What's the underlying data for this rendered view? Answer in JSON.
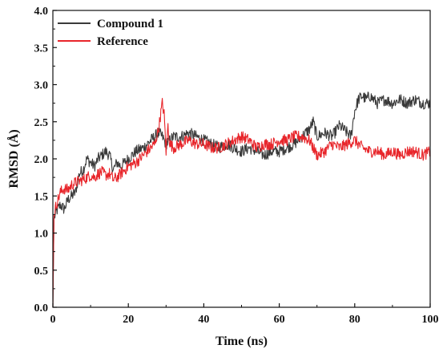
{
  "chart_data": {
    "type": "line",
    "xlabel": "Time (ns)",
    "ylabel": "RMSD (Å)",
    "xlim": [
      0,
      100
    ],
    "ylim": [
      0,
      4.0
    ],
    "x_ticks": [
      "0",
      "20",
      "40",
      "60",
      "80",
      "100"
    ],
    "y_ticks": [
      "0.0",
      "0.5",
      "1.0",
      "1.5",
      "2.0",
      "2.5",
      "3.0",
      "3.5",
      "4.0"
    ],
    "legend_position": "top-left",
    "series": [
      {
        "name": "Compound 1",
        "color": "#3a3a3a",
        "x": [
          0,
          0.3,
          1,
          2,
          3,
          4,
          5,
          6,
          7,
          8,
          9,
          10,
          11,
          12,
          13,
          14,
          15,
          16,
          17,
          18,
          19,
          20,
          22,
          24,
          26,
          27,
          28,
          29,
          30,
          31,
          32,
          34,
          36,
          38,
          40,
          42,
          44,
          46,
          48,
          50,
          52,
          54,
          56,
          58,
          60,
          62,
          64,
          66,
          68,
          69,
          70,
          72,
          74,
          76,
          78,
          79,
          80,
          81,
          82,
          83,
          84,
          86,
          88,
          90,
          92,
          94,
          96,
          98,
          100
        ],
        "y": [
          0.0,
          1.2,
          1.3,
          1.38,
          1.32,
          1.45,
          1.5,
          1.55,
          1.8,
          1.85,
          2.0,
          1.95,
          1.9,
          2.0,
          2.05,
          2.1,
          2.05,
          1.85,
          1.95,
          1.9,
          1.95,
          2.0,
          2.1,
          2.15,
          2.25,
          2.3,
          2.35,
          2.3,
          2.2,
          2.25,
          2.3,
          2.3,
          2.35,
          2.3,
          2.25,
          2.2,
          2.15,
          2.2,
          2.15,
          2.1,
          2.15,
          2.1,
          2.05,
          2.1,
          2.1,
          2.15,
          2.2,
          2.3,
          2.4,
          2.5,
          2.3,
          2.35,
          2.3,
          2.45,
          2.35,
          2.3,
          2.65,
          2.8,
          2.85,
          2.8,
          2.85,
          2.75,
          2.8,
          2.75,
          2.8,
          2.75,
          2.8,
          2.75,
          2.75
        ]
      },
      {
        "name": "Reference",
        "color": "#e8262b",
        "x": [
          0,
          0.3,
          1,
          2,
          3,
          4,
          5,
          6,
          7,
          8,
          9,
          10,
          11,
          12,
          13,
          14,
          15,
          16,
          17,
          18,
          19,
          20,
          22,
          24,
          26,
          27,
          28,
          29,
          29.5,
          30,
          30.5,
          31,
          32,
          34,
          36,
          38,
          40,
          42,
          44,
          46,
          48,
          50,
          52,
          54,
          56,
          58,
          60,
          62,
          64,
          66,
          68,
          70,
          72,
          74,
          76,
          78,
          80,
          82,
          84,
          86,
          88,
          90,
          92,
          94,
          96,
          98,
          100
        ],
        "y": [
          0.0,
          1.25,
          1.4,
          1.55,
          1.6,
          1.58,
          1.65,
          1.68,
          1.7,
          1.72,
          1.75,
          1.78,
          1.75,
          1.8,
          1.82,
          1.78,
          1.8,
          1.72,
          1.75,
          1.8,
          1.85,
          1.9,
          1.95,
          2.05,
          2.15,
          2.2,
          2.4,
          2.75,
          2.6,
          2.1,
          2.45,
          2.2,
          2.15,
          2.2,
          2.25,
          2.2,
          2.2,
          2.15,
          2.15,
          2.2,
          2.25,
          2.3,
          2.25,
          2.15,
          2.2,
          2.2,
          2.25,
          2.25,
          2.3,
          2.3,
          2.25,
          2.05,
          2.1,
          2.2,
          2.15,
          2.2,
          2.25,
          2.15,
          2.1,
          2.1,
          2.05,
          2.1,
          2.05,
          2.1,
          2.1,
          2.05,
          2.1
        ]
      }
    ]
  }
}
